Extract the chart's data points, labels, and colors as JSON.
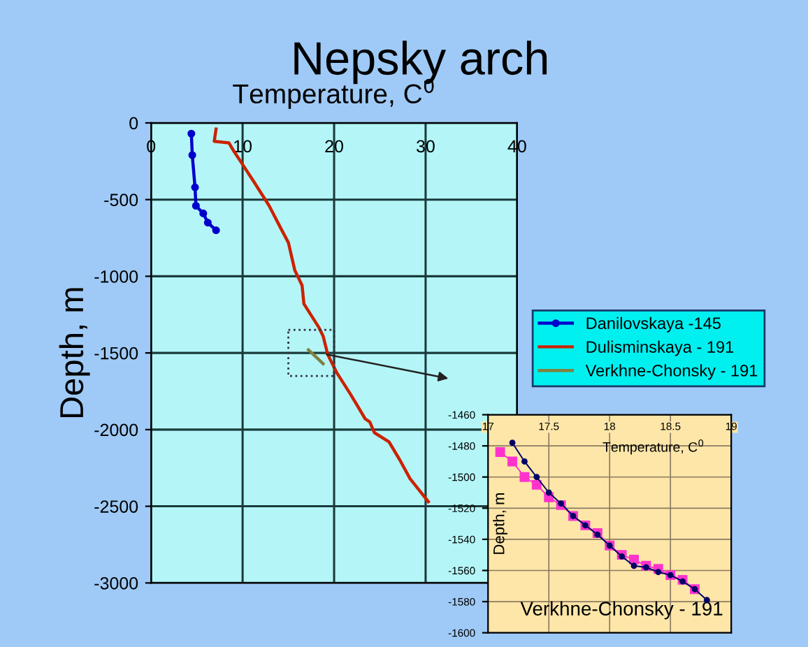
{
  "chart_data": [
    {
      "type": "line",
      "title": "Nepsky arch",
      "xlabel": "Temperature, C$^{0}$",
      "ylabel": "Depth, m",
      "xlim": [
        0,
        40
      ],
      "xticks": [
        0,
        10,
        20,
        30,
        40
      ],
      "ylim": [
        -3000,
        0
      ],
      "yticks": [
        -3000,
        -2500,
        -2000,
        -1500,
        -1000,
        -500,
        0
      ],
      "grid": true,
      "legend": "right",
      "line_style": "solid",
      "series": [
        {
          "name": "Danilovskaya -145",
          "color": "#0000cc",
          "marker": "circle",
          "x": [
            4.4,
            4.5,
            4.8,
            4.9,
            5.7,
            6.2,
            7.1
          ],
          "values": [
            -70,
            -210,
            -420,
            -540,
            -590,
            -650,
            -700
          ]
        },
        {
          "name": "Dulisminskaya - 191",
          "color": "#cc2200",
          "marker": "none",
          "x": [
            7.1,
            6.9,
            8.5,
            9.0,
            10.1,
            11.3,
            12.9,
            14.2,
            15.0,
            15.7,
            16.5,
            16.7,
            18.3,
            18.8,
            19.3,
            20.3,
            21.8,
            23.4,
            23.9,
            24.4,
            26.0,
            27.2,
            28.3,
            29.5,
            30.3
          ],
          "values": [
            -40,
            -120,
            -130,
            -180,
            -280,
            -390,
            -540,
            -690,
            -780,
            -960,
            -1060,
            -1180,
            -1330,
            -1390,
            -1510,
            -1630,
            -1770,
            -1930,
            -1950,
            -2020,
            -2080,
            -2200,
            -2320,
            -2410,
            -2470
          ]
        },
        {
          "name": "Verkhne-Chonsky - 191",
          "color": "#808040",
          "marker": "none",
          "x": [
            17.2,
            18.8
          ],
          "values": [
            -1480,
            -1570
          ]
        }
      ]
    },
    {
      "type": "line",
      "xlabel": "Temperature, C$^{0}$",
      "ylabel": "Depth, m",
      "annotations": [
        "Verkhne-Chonsky - 191"
      ],
      "xlim": [
        17,
        19
      ],
      "xticks": [
        17,
        17.5,
        18,
        18.5,
        19
      ],
      "ylim": [
        -1600,
        -1460
      ],
      "yticks": [
        -1600,
        -1580,
        -1560,
        -1540,
        -1520,
        -1500,
        -1480,
        -1460
      ],
      "grid": true,
      "line_style": "solid",
      "series": [
        {
          "color": "#000066",
          "marker": "circle",
          "x": [
            17.2,
            17.3,
            17.4,
            17.5,
            17.6,
            17.7,
            17.8,
            17.9,
            18.0,
            18.1,
            18.2,
            18.3,
            18.4,
            18.5,
            18.6,
            18.7,
            18.8
          ],
          "values": [
            -1478,
            -1490,
            -1500,
            -1510,
            -1517,
            -1525,
            -1531,
            -1537,
            -1544,
            -1551,
            -1557,
            -1558,
            -1561,
            -1563,
            -1567,
            -1572,
            -1579
          ]
        },
        {
          "color": "#ff33cc",
          "marker": "square",
          "x": [
            17.1,
            17.2,
            17.3,
            17.4,
            17.5,
            17.6,
            17.7,
            17.8,
            17.9,
            18.0,
            18.1,
            18.2,
            18.3,
            18.4,
            18.5,
            18.6,
            18.7
          ],
          "values": [
            -1484,
            -1490,
            -1500,
            -1505,
            -1513,
            -1518,
            -1525,
            -1531,
            -1536,
            -1544,
            -1550,
            -1553,
            -1557,
            -1559,
            -1563,
            -1566,
            -1572
          ]
        }
      ]
    }
  ]
}
